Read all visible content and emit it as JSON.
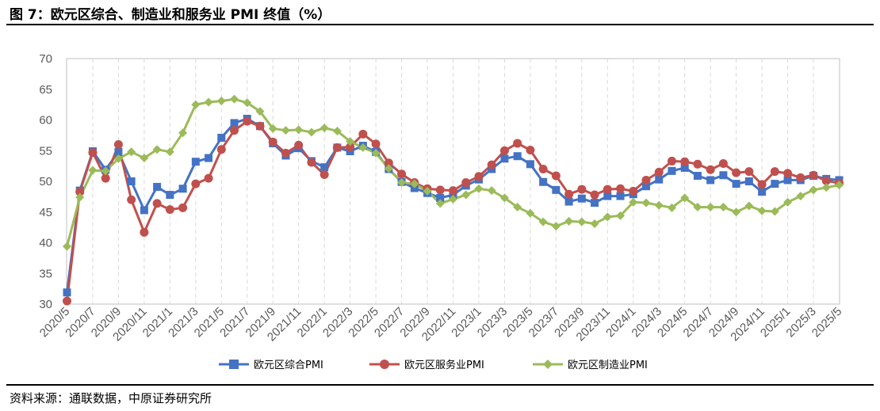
{
  "title": "图 7：欧元区综合、制造业和服务业 PMI 终值（%）",
  "source": "资料来源：通联数据，中原证券研究所",
  "chart_data": {
    "type": "line",
    "title": "",
    "xlabel": "",
    "ylabel": "",
    "ylim": [
      30,
      70
    ],
    "yticks": [
      30,
      35,
      40,
      45,
      50,
      55,
      60,
      65,
      70
    ],
    "grid": "vertical dashed",
    "legend_position": "bottom",
    "x_tick_labels": [
      "2020/5",
      "2020/7",
      "2020/9",
      "2020/11",
      "2021/1",
      "2021/3",
      "2021/5",
      "2021/7",
      "2021/9",
      "2021/11",
      "2022/1",
      "2022/3",
      "2022/5",
      "2022/7",
      "2022/9",
      "2022/11",
      "2023/1",
      "2023/3",
      "2023/5",
      "2023/7",
      "2023/9",
      "2023/11",
      "2024/1",
      "2024/3",
      "2024/5",
      "2024/7",
      "2024/9",
      "2024/11",
      "2025/1",
      "2025/3",
      "2025/5"
    ],
    "x": [
      "2020/5",
      "2020/6",
      "2020/7",
      "2020/8",
      "2020/9",
      "2020/10",
      "2020/11",
      "2020/12",
      "2021/1",
      "2021/2",
      "2021/3",
      "2021/4",
      "2021/5",
      "2021/6",
      "2021/7",
      "2021/8",
      "2021/9",
      "2021/10",
      "2021/11",
      "2021/12",
      "2022/1",
      "2022/2",
      "2022/3",
      "2022/4",
      "2022/5",
      "2022/6",
      "2022/7",
      "2022/8",
      "2022/9",
      "2022/10",
      "2022/11",
      "2022/12",
      "2023/1",
      "2023/2",
      "2023/3",
      "2023/4",
      "2023/5",
      "2023/6",
      "2023/7",
      "2023/8",
      "2023/9",
      "2023/10",
      "2023/11",
      "2023/12",
      "2024/1",
      "2024/2",
      "2024/3",
      "2024/4",
      "2024/5",
      "2024/6",
      "2024/7",
      "2024/8",
      "2024/9",
      "2024/10",
      "2024/11",
      "2024/12",
      "2025/1",
      "2025/2",
      "2025/3",
      "2025/4",
      "2025/5"
    ],
    "series": [
      {
        "name": "欧元区综合PMI",
        "color": "#4472C4",
        "marker": "square",
        "values": [
          31.9,
          48.5,
          54.9,
          51.9,
          54.8,
          50.0,
          45.3,
          49.1,
          47.8,
          48.8,
          53.2,
          53.8,
          57.1,
          59.5,
          60.2,
          59.0,
          56.2,
          54.2,
          55.4,
          53.3,
          52.3,
          55.5,
          54.9,
          55.8,
          54.8,
          52.0,
          49.9,
          48.9,
          48.1,
          47.3,
          47.8,
          49.3,
          50.3,
          52.0,
          53.7,
          54.1,
          52.8,
          49.9,
          48.6,
          46.7,
          47.2,
          46.5,
          47.6,
          47.6,
          47.9,
          49.2,
          50.3,
          51.7,
          52.2,
          50.9,
          50.2,
          51.0,
          49.6,
          50.0,
          48.3,
          49.6,
          50.2,
          50.2,
          50.9,
          50.4,
          50.2
        ]
      },
      {
        "name": "欧元区服务业PMI",
        "color": "#C0504D",
        "marker": "circle",
        "values": [
          30.5,
          48.3,
          54.7,
          50.5,
          56.0,
          47.0,
          41.7,
          46.4,
          45.4,
          45.7,
          49.6,
          50.5,
          55.2,
          58.3,
          59.8,
          59.0,
          56.4,
          54.6,
          55.9,
          53.1,
          51.1,
          55.5,
          55.6,
          57.7,
          56.1,
          53.0,
          51.2,
          49.8,
          48.8,
          48.6,
          48.5,
          49.8,
          50.8,
          52.7,
          55.0,
          56.2,
          55.1,
          52.0,
          50.9,
          47.9,
          48.7,
          47.8,
          48.7,
          48.8,
          48.4,
          50.2,
          51.5,
          53.3,
          53.2,
          52.8,
          51.9,
          52.9,
          51.4,
          51.6,
          49.5,
          51.6,
          51.3,
          50.6,
          51.0,
          50.1,
          49.7
        ]
      },
      {
        "name": "欧元区制造业PMI",
        "color": "#9BBB59",
        "marker": "diamond",
        "values": [
          39.4,
          47.4,
          51.8,
          51.7,
          53.7,
          54.8,
          53.8,
          55.2,
          54.8,
          57.9,
          62.5,
          62.9,
          63.1,
          63.4,
          62.8,
          61.4,
          58.6,
          58.3,
          58.4,
          58.0,
          58.7,
          58.2,
          56.5,
          55.5,
          54.6,
          52.1,
          49.8,
          49.6,
          48.4,
          46.4,
          47.1,
          47.8,
          48.8,
          48.5,
          47.3,
          45.8,
          44.8,
          43.4,
          42.7,
          43.5,
          43.4,
          43.1,
          44.2,
          44.4,
          46.6,
          46.5,
          46.1,
          45.7,
          47.3,
          45.8,
          45.8,
          45.8,
          45.0,
          46.0,
          45.2,
          45.1,
          46.6,
          47.6,
          48.6,
          49.0,
          49.4
        ]
      }
    ]
  }
}
